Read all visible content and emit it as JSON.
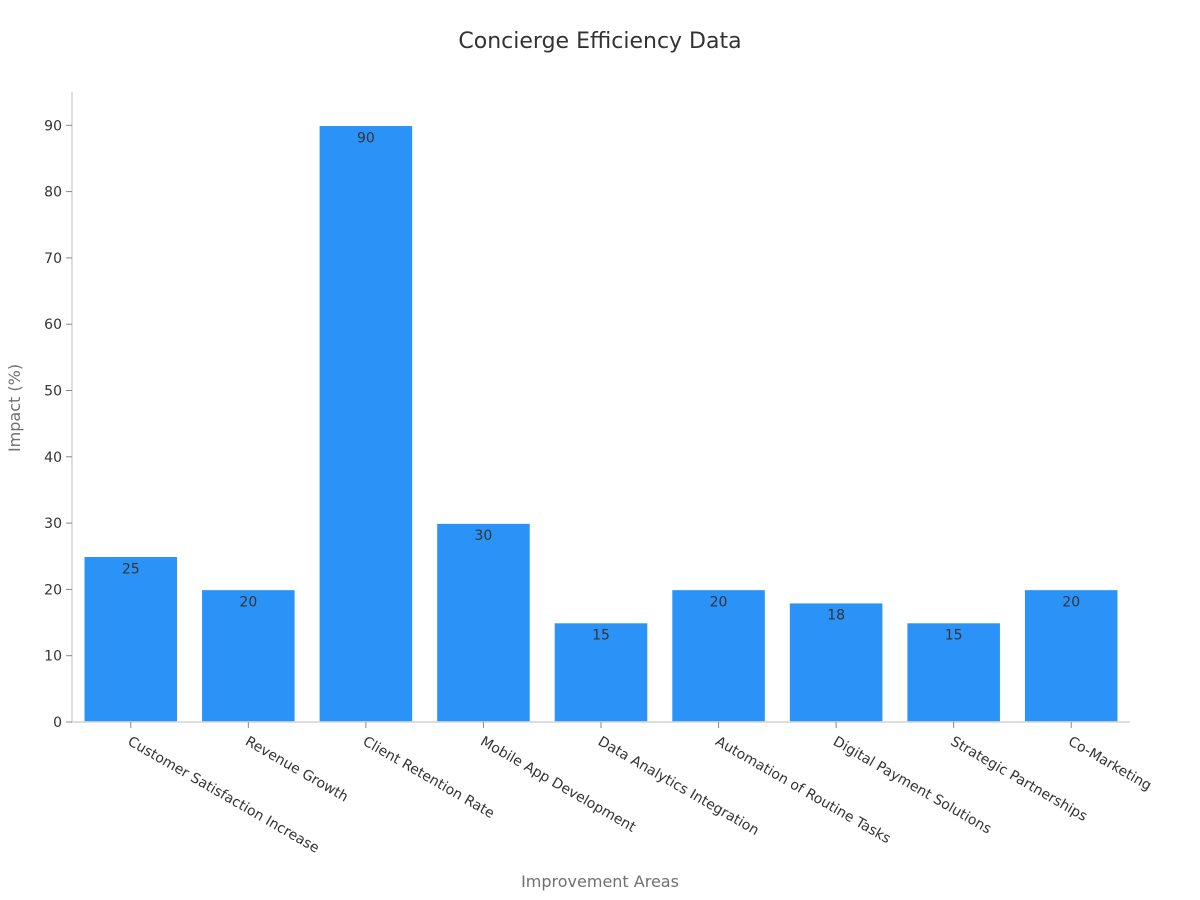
{
  "chart_data": {
    "type": "bar",
    "title": "Concierge Efficiency Data",
    "xlabel": "Improvement Areas",
    "ylabel": "Impact (%)",
    "categories": [
      "Customer Satisfaction Increase",
      "Revenue Growth",
      "Client Retention Rate",
      "Mobile App Development",
      "Data Analytics Integration",
      "Automation of Routine Tasks",
      "Digital Payment Solutions",
      "Strategic Partnerships",
      "Co-Marketing"
    ],
    "values": [
      25,
      20,
      90,
      30,
      15,
      20,
      18,
      15,
      20
    ],
    "ylim": [
      0,
      95
    ],
    "yticks": [
      "0",
      "10",
      "20",
      "30",
      "40",
      "50",
      "60",
      "70",
      "80",
      "90"
    ],
    "grid": false,
    "legend": "none",
    "bar_color": "#2b93f8"
  }
}
